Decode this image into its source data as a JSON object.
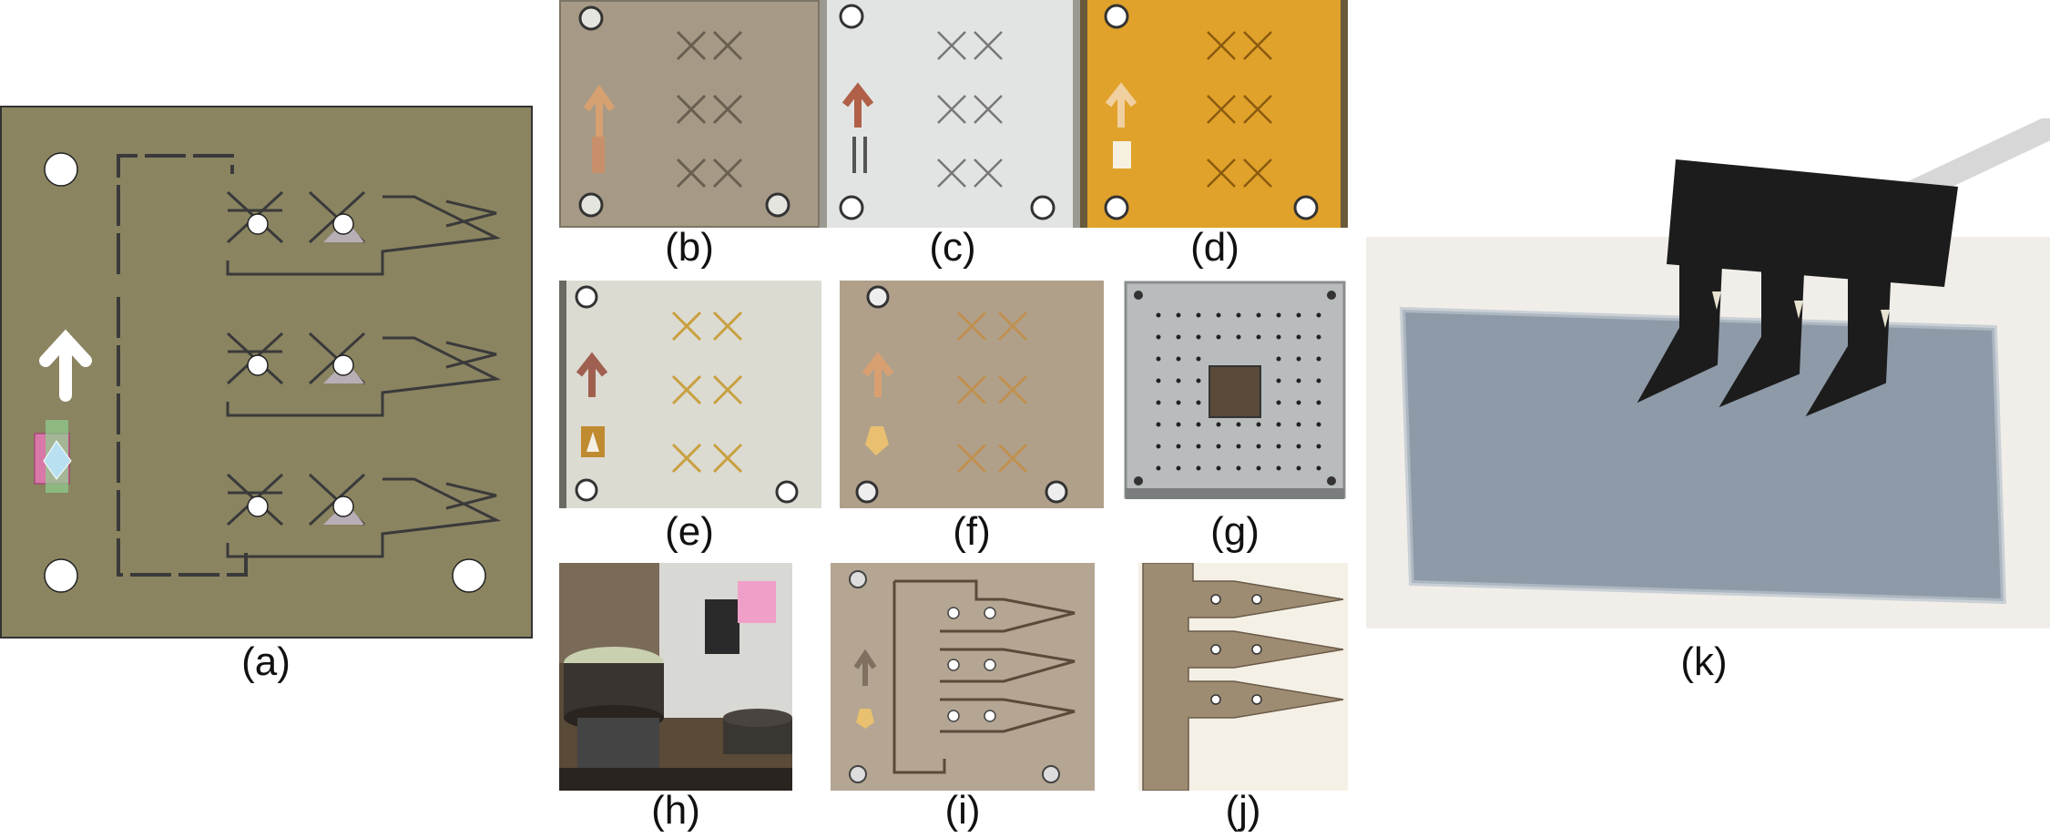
{
  "panels": {
    "a": "(a)",
    "b": "(b)",
    "c": "(c)",
    "d": "(d)",
    "e": "(e)",
    "f": "(f)",
    "g": "(g)",
    "h": "(h)",
    "i": "(i)",
    "j": "(j)",
    "k": "(k)"
  },
  "colors": {
    "cad_plate": "#8a8461",
    "aluminum_plate": "#a69a86",
    "white_film": "#e2e4e4",
    "kapton_film": "#e0a22a",
    "silver_plate": "#b9bcbd",
    "substrate_glass": "#8e9aa8",
    "robot_black": "#1c1c1c"
  }
}
